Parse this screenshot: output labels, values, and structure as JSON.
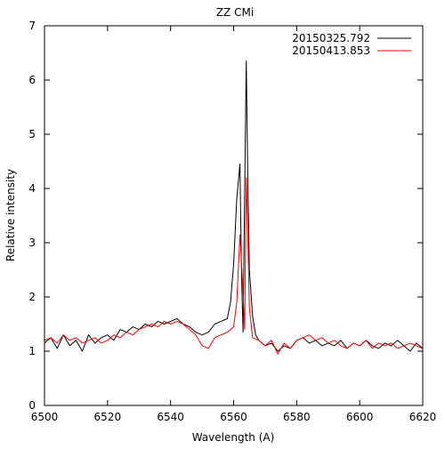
{
  "chart_data": {
    "type": "line",
    "title": "ZZ CMi",
    "xlabel": "Wavelength (A)",
    "ylabel": "Relative intensity",
    "xlim": [
      6500,
      6620
    ],
    "ylim": [
      0,
      7
    ],
    "xticks": [
      "6500",
      "6520",
      "6540",
      "6560",
      "6580",
      "6600",
      "6620"
    ],
    "yticks": [
      "0",
      "1",
      "2",
      "3",
      "4",
      "5",
      "6",
      "7"
    ],
    "grid": false,
    "legend_position": "top-right",
    "series": [
      {
        "name": "20150325.792",
        "color": "#000000",
        "x": [
          6500,
          6502,
          6504,
          6506,
          6508,
          6510,
          6512,
          6514,
          6516,
          6518,
          6520,
          6522,
          6524,
          6526,
          6528,
          6530,
          6532,
          6534,
          6536,
          6538,
          6540,
          6542,
          6544,
          6546,
          6548,
          6550,
          6552,
          6554,
          6556,
          6558,
          6559,
          6560,
          6561,
          6562,
          6562.5,
          6563,
          6563.5,
          6564,
          6564.5,
          6565,
          6566,
          6567,
          6568,
          6570,
          6572,
          6574,
          6576,
          6578,
          6580,
          6582,
          6584,
          6586,
          6588,
          6590,
          6592,
          6594,
          6596,
          6598,
          6600,
          6602,
          6604,
          6606,
          6608,
          6610,
          6612,
          6614,
          6616,
          6618,
          6620
        ],
        "y": [
          1.15,
          1.25,
          1.05,
          1.3,
          1.1,
          1.2,
          1.0,
          1.3,
          1.15,
          1.25,
          1.3,
          1.2,
          1.4,
          1.35,
          1.45,
          1.4,
          1.5,
          1.45,
          1.55,
          1.5,
          1.55,
          1.6,
          1.5,
          1.45,
          1.35,
          1.3,
          1.35,
          1.5,
          1.55,
          1.6,
          1.9,
          2.6,
          3.8,
          4.45,
          2.4,
          1.35,
          3.9,
          6.35,
          4.2,
          2.5,
          1.65,
          1.3,
          1.2,
          1.1,
          1.15,
          1.0,
          1.1,
          1.05,
          1.2,
          1.25,
          1.15,
          1.2,
          1.1,
          1.15,
          1.1,
          1.2,
          1.05,
          1.15,
          1.1,
          1.2,
          1.1,
          1.05,
          1.15,
          1.1,
          1.2,
          1.1,
          1.0,
          1.15,
          1.05
        ]
      },
      {
        "name": "20150413.853",
        "color": "#ff0000",
        "x": [
          6500,
          6502,
          6504,
          6506,
          6508,
          6510,
          6512,
          6514,
          6516,
          6518,
          6520,
          6522,
          6524,
          6526,
          6528,
          6530,
          6532,
          6534,
          6536,
          6538,
          6540,
          6542,
          6544,
          6546,
          6548,
          6550,
          6552,
          6554,
          6556,
          6558,
          6560,
          6561,
          6562,
          6563,
          6563.5,
          6564,
          6564.5,
          6565,
          6566,
          6568,
          6570,
          6572,
          6574,
          6576,
          6578,
          6580,
          6582,
          6584,
          6586,
          6588,
          6590,
          6592,
          6594,
          6596,
          6598,
          6600,
          6602,
          6604,
          6606,
          6608,
          6610,
          6612,
          6614,
          6616,
          6618,
          6620
        ],
        "y": [
          1.2,
          1.25,
          1.15,
          1.3,
          1.2,
          1.25,
          1.15,
          1.2,
          1.25,
          1.15,
          1.2,
          1.3,
          1.25,
          1.35,
          1.3,
          1.4,
          1.45,
          1.5,
          1.45,
          1.55,
          1.5,
          1.55,
          1.5,
          1.4,
          1.3,
          1.1,
          1.05,
          1.25,
          1.3,
          1.35,
          1.45,
          1.9,
          3.15,
          2.1,
          1.4,
          4.2,
          3.2,
          1.8,
          1.25,
          1.2,
          1.1,
          1.2,
          0.95,
          1.15,
          1.05,
          1.2,
          1.25,
          1.3,
          1.2,
          1.25,
          1.15,
          1.2,
          1.1,
          1.05,
          1.15,
          1.1,
          1.2,
          1.05,
          1.15,
          1.1,
          1.15,
          1.05,
          1.1,
          1.15,
          1.1,
          1.05
        ]
      }
    ]
  }
}
